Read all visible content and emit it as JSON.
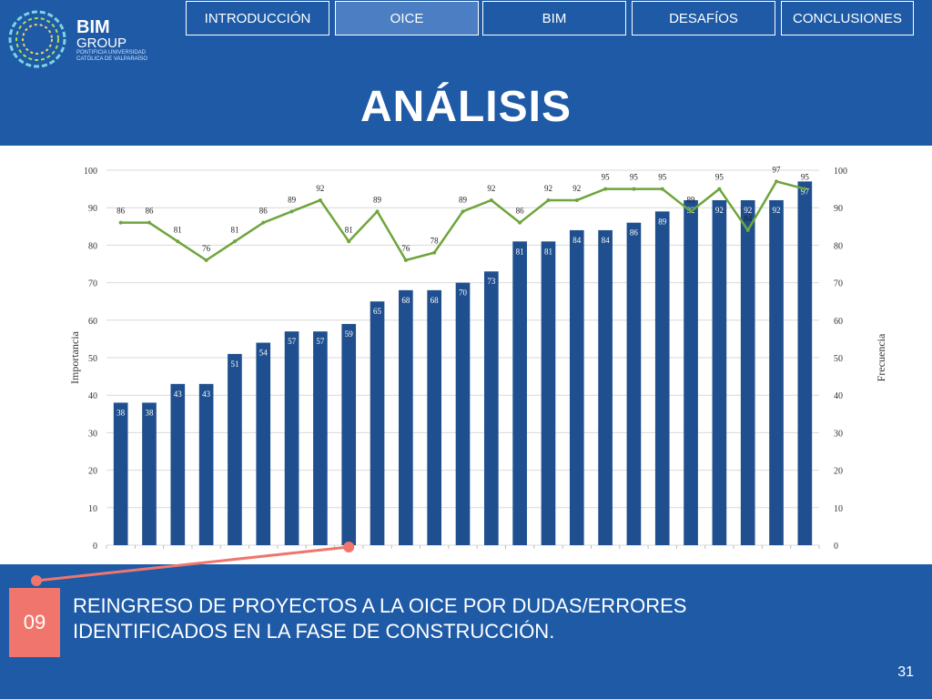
{
  "logo": {
    "title": "BIM",
    "subtitle": "GROUP",
    "small": "PONTIFICIA UNIVERSIDAD CATÓLICA DE VALPARAÍSO"
  },
  "tabs": [
    {
      "label": "INTRODUCCIÓN",
      "active": false
    },
    {
      "label": "OICE",
      "active": true
    },
    {
      "label": "BIM",
      "active": false
    },
    {
      "label": "DESAFÍOS",
      "active": false
    },
    {
      "label": "CONCLUSIONES",
      "active": false
    }
  ],
  "title": "ANÁLISIS",
  "badge": "09",
  "description": "REINGRESO DE PROYECTOS A LA OICE POR DUDAS/ERRORES IDENTIFICADOS EN LA FASE DE CONSTRUCCIÓN.",
  "page_number": "31",
  "colors": {
    "bar": "#1f4f8e",
    "line": "#6ea53c",
    "accent": "#f0766d",
    "band": "#1e5aa6"
  },
  "chart_data": {
    "type": "bar",
    "ylabel": "Importancia",
    "y2label": "Frecuencia",
    "ylim": [
      0,
      100
    ],
    "y2lim": [
      0,
      100
    ],
    "yticks": [
      0,
      10,
      20,
      30,
      40,
      50,
      60,
      70,
      80,
      90,
      100
    ],
    "series": [
      {
        "values": [
          38,
          38,
          43,
          43,
          51,
          54,
          57,
          57,
          59,
          65,
          68,
          68,
          70,
          73,
          81,
          81,
          84,
          84,
          86,
          89,
          92,
          92,
          92,
          92,
          97
        ]
      },
      {
        "values": [
          86,
          86,
          81,
          76,
          81,
          86,
          89,
          92,
          81,
          89,
          76,
          78,
          89,
          92,
          86,
          92,
          92,
          95,
          95,
          95,
          89,
          95,
          84,
          97,
          95
        ]
      }
    ],
    "highlight_index": 8
  }
}
